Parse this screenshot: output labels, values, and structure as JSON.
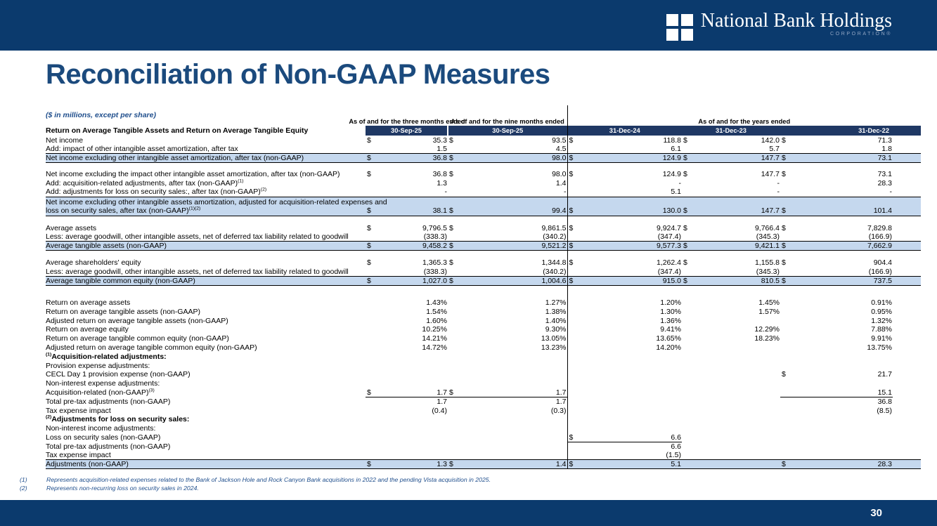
{
  "brand": {
    "name": "National Bank Holdings",
    "sub": "CORPORATION®"
  },
  "page": {
    "title": "Reconciliation of Non-GAAP Measures",
    "page_number": "30"
  },
  "colors": {
    "bar_navy": "#0b3a6d",
    "header_band_navy": "#1f3864",
    "highlight_blue": "#c5d8ee",
    "title_blue": "#1b4a7d",
    "footnote_blue": "#1f4e8c"
  },
  "table": {
    "units_note": "($ in millions, except per share)",
    "section_title": "Return on Average Tangible Assets and Return on Average Tangible Equity",
    "col_groups": [
      {
        "label": "As of and for the three months ended",
        "span": 1
      },
      {
        "label": "As of and for the nine months ended",
        "span": 1
      },
      {
        "label": "As of and for the years ended",
        "span": 3
      }
    ],
    "columns": [
      "30-Sep-25",
      "30-Sep-25",
      "31-Dec-24",
      "31-Dec-23",
      "31-Dec-22"
    ],
    "rows": [
      {
        "label": "Net income",
        "cells": [
          [
            "$",
            "35.3"
          ],
          [
            "$",
            "93.5"
          ],
          [
            "$",
            "118.8"
          ],
          [
            "$",
            "142.0"
          ],
          [
            "$",
            "71.3"
          ]
        ]
      },
      {
        "label": "Add: impact of other intangible asset amortization, after tax",
        "cells": [
          [
            "",
            "1.5"
          ],
          [
            "",
            "4.5"
          ],
          [
            "",
            "6.1"
          ],
          [
            "",
            "5.7"
          ],
          [
            "",
            "1.8"
          ]
        ]
      },
      {
        "label": "Net income excluding other intangible asset amortization, after tax (non-GAAP)",
        "hl": true,
        "cells": [
          [
            "$",
            "36.8"
          ],
          [
            "$",
            "98.0"
          ],
          [
            "$",
            "124.9"
          ],
          [
            "$",
            "147.7"
          ],
          [
            "$",
            "73.1"
          ]
        ]
      },
      {
        "blank": true,
        "h": 9
      },
      {
        "label": "Net income excluding the impact other intangible asset amortization, after tax (non-GAAP)",
        "cells": [
          [
            "$",
            "36.8"
          ],
          [
            "$",
            "98.0"
          ],
          [
            "$",
            "124.9"
          ],
          [
            "$",
            "147.7"
          ],
          [
            "$",
            "73.1"
          ]
        ]
      },
      {
        "label": "Add: acquisition-related adjustments, after tax (non-GAAP)",
        "sup": "(1)",
        "cells": [
          [
            "",
            "1.3"
          ],
          [
            "",
            "1.4"
          ],
          [
            "",
            "-"
          ],
          [
            "",
            "-"
          ],
          [
            "",
            "28.3"
          ]
        ]
      },
      {
        "label": "Add: adjustments for loss on security sales:, after tax (non-GAAP)",
        "sup": "(2)",
        "cells": [
          [
            "",
            "-"
          ],
          [
            "",
            "-"
          ],
          [
            "",
            "5.1"
          ],
          [
            "",
            "-"
          ],
          [
            "",
            "-"
          ]
        ]
      },
      {
        "label": "Net income excluding other intangible assets amortization, adjusted for acquisition-related expenses and",
        "label2": "loss on security sales, after tax (non-GAAP)",
        "sup2": "(1)(2)",
        "hl": true,
        "two": true,
        "cells": [
          [
            "$",
            "38.1"
          ],
          [
            "$",
            "99.4"
          ],
          [
            "$",
            "130.0"
          ],
          [
            "$",
            "147.7"
          ],
          [
            "$",
            "101.4"
          ]
        ]
      },
      {
        "blank": true,
        "h": 11
      },
      {
        "label": "Average assets",
        "cells": [
          [
            "$",
            "9,796.5"
          ],
          [
            "$",
            "9,861.5"
          ],
          [
            "$",
            "9,924.7"
          ],
          [
            "$",
            "9,766.4"
          ],
          [
            "$",
            "7,829.8"
          ]
        ]
      },
      {
        "label": "Less: average goodwill, other intangible assets, net of deferred tax liability related to goodwill",
        "cells": [
          [
            "",
            "(338.3)"
          ],
          [
            "",
            "(340.2)"
          ],
          [
            "",
            "(347.4)"
          ],
          [
            "",
            "(345.3)"
          ],
          [
            "",
            "(166.9)"
          ]
        ]
      },
      {
        "label": "Average tangible assets (non-GAAP)",
        "hl": true,
        "cells": [
          [
            "$",
            "9,458.2"
          ],
          [
            "$",
            "9,521.2"
          ],
          [
            "$",
            "9,577.3"
          ],
          [
            "$",
            "9,421.1"
          ],
          [
            "$",
            "7,662.9"
          ]
        ]
      },
      {
        "blank": true,
        "h": 11
      },
      {
        "label": "Average shareholders' equity",
        "cells": [
          [
            "$",
            "1,365.3"
          ],
          [
            "$",
            "1,344.8"
          ],
          [
            "$",
            "1,262.4"
          ],
          [
            "$",
            "1,155.8"
          ],
          [
            "$",
            "904.4"
          ]
        ]
      },
      {
        "label": "Less: average goodwill, other intangible assets, net of deferred tax liability related to goodwill",
        "cells": [
          [
            "",
            "(338.3)"
          ],
          [
            "",
            "(340.2)"
          ],
          [
            "",
            "(347.4)"
          ],
          [
            "",
            "(345.3)"
          ],
          [
            "",
            "(166.9)"
          ]
        ]
      },
      {
        "label": "Average tangible common equity (non-GAAP)",
        "hl": true,
        "cells": [
          [
            "$",
            "1,027.0"
          ],
          [
            "$",
            "1,004.6"
          ],
          [
            "$",
            "915.0"
          ],
          [
            "$",
            "810.5"
          ],
          [
            "$",
            "737.5"
          ]
        ]
      },
      {
        "blank": true,
        "h": 18
      },
      {
        "label": "Return on average assets",
        "cells": [
          [
            "",
            "1.43%"
          ],
          [
            "",
            "1.27%"
          ],
          [
            "",
            "1.20%"
          ],
          [
            "",
            "1.45%"
          ],
          [
            "",
            "0.91%"
          ]
        ]
      },
      {
        "label": "Return on average tangible assets (non-GAAP)",
        "cells": [
          [
            "",
            "1.54%"
          ],
          [
            "",
            "1.38%"
          ],
          [
            "",
            "1.30%"
          ],
          [
            "",
            "1.57%"
          ],
          [
            "",
            "0.95%"
          ]
        ]
      },
      {
        "label": "Adjusted return on average tangible assets (non-GAAP)",
        "cells": [
          [
            "",
            "1.60%"
          ],
          [
            "",
            "1.40%"
          ],
          [
            "",
            "1.36%"
          ],
          [
            "",
            ""
          ],
          [
            "",
            "1.32%"
          ]
        ]
      },
      {
        "label": "Return on average equity",
        "cells": [
          [
            "",
            "10.25%"
          ],
          [
            "",
            "9.30%"
          ],
          [
            "",
            "9.41%"
          ],
          [
            "",
            "12.29%"
          ],
          [
            "",
            "7.88%"
          ]
        ]
      },
      {
        "label": "Return on average tangible common equity (non-GAAP)",
        "cells": [
          [
            "",
            "14.21%"
          ],
          [
            "",
            "13.05%"
          ],
          [
            "",
            "13.65%"
          ],
          [
            "",
            "18.23%"
          ],
          [
            "",
            "9.91%"
          ]
        ]
      },
      {
        "label": "Adjusted return on average tangible common equity (non-GAAP)",
        "cells": [
          [
            "",
            "14.72%"
          ],
          [
            "",
            "13.23%"
          ],
          [
            "",
            "14.20%"
          ],
          [
            "",
            ""
          ],
          [
            "",
            "13.75%"
          ]
        ]
      },
      {
        "label": "Acquisition-related adjustments:",
        "sup_prefix": "(1)",
        "bold": true,
        "cells": []
      },
      {
        "label": "Provision expense adjustments:",
        "cells": []
      },
      {
        "label": "CECL Day 1 provision expense (non-GAAP)",
        "ind": 1,
        "cells": [
          [
            "",
            ""
          ],
          [
            "",
            ""
          ],
          [
            "",
            ""
          ],
          [
            "",
            ""
          ],
          [
            "$",
            "21.7"
          ]
        ]
      },
      {
        "label": "Non-interest expense adjustments:",
        "cells": []
      },
      {
        "label": "Acquisition-related (non-GAAP)",
        "sup": "(3)",
        "ind": 1,
        "ul": [
          0,
          1,
          4
        ],
        "cells": [
          [
            "$",
            "1.7"
          ],
          [
            "$",
            "1.7"
          ],
          [
            "",
            ""
          ],
          [
            "",
            ""
          ],
          [
            "",
            "15.1"
          ]
        ]
      },
      {
        "label": "Total pre-tax adjustments (non-GAAP)",
        "ind": 1,
        "cells": [
          [
            "",
            "1.7"
          ],
          [
            "",
            "1.7"
          ],
          [
            "",
            ""
          ],
          [
            "",
            ""
          ],
          [
            "",
            "36.8"
          ]
        ]
      },
      {
        "label": "Tax expense impact",
        "ind": 2,
        "cells": [
          [
            "",
            "(0.4)"
          ],
          [
            "",
            "(0.3)"
          ],
          [
            "",
            ""
          ],
          [
            "",
            ""
          ],
          [
            "",
            "(8.5)"
          ]
        ]
      },
      {
        "label": "Adjustments for loss on security sales:",
        "sup_prefix": "(2)",
        "bold": true,
        "cells": []
      },
      {
        "label": "Non-interest income adjustments:",
        "cells": []
      },
      {
        "label": "Loss on security sales (non-GAAP)",
        "ind": 1,
        "ul": [
          2
        ],
        "cells": [
          [
            "",
            ""
          ],
          [
            "",
            ""
          ],
          [
            "$",
            "6.6"
          ],
          [
            "",
            ""
          ],
          [
            "",
            ""
          ]
        ]
      },
      {
        "label": "Total pre-tax adjustments (non-GAAP)",
        "ind": 1,
        "cells": [
          [
            "",
            ""
          ],
          [
            "",
            ""
          ],
          [
            "",
            "6.6"
          ],
          [
            "",
            ""
          ],
          [
            "",
            ""
          ]
        ]
      },
      {
        "label": "Tax expense impact",
        "ind": 2,
        "cells": [
          [
            "",
            ""
          ],
          [
            "",
            ""
          ],
          [
            "",
            "(1.5)"
          ],
          [
            "",
            ""
          ],
          [
            "",
            ""
          ]
        ]
      },
      {
        "label": "Adjustments (non-GAAP)",
        "hl": true,
        "cells": [
          [
            "$",
            "1.3"
          ],
          [
            "$",
            "1.4"
          ],
          [
            "$",
            "5.1"
          ],
          [
            "",
            ""
          ],
          [
            "$",
            "28.3"
          ]
        ]
      }
    ]
  },
  "footnotes": [
    {
      "n": "(1)",
      "text": "Represents acquisition-related expenses related to the Bank of Jackson Hole and Rock Canyon Bank acquisitions in 2022 and the pending Vista acquisition in 2025."
    },
    {
      "n": "(2)",
      "text": "Represents non-recurring loss on security sales in 2024."
    }
  ]
}
